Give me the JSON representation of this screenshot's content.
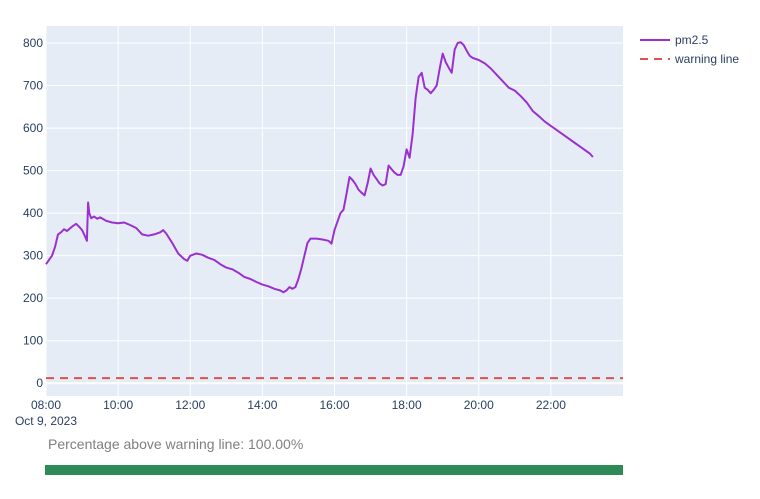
{
  "chart_data": {
    "type": "line",
    "title": "",
    "xlabel": "",
    "ylabel": "",
    "date_label": "Oct 9, 2023",
    "x_range": [
      "08:00",
      "24:00"
    ],
    "x_ticks": [
      "08:00",
      "10:00",
      "12:00",
      "14:00",
      "16:00",
      "18:00",
      "20:00",
      "22:00"
    ],
    "ylim": [
      -30,
      840
    ],
    "y_ticks": [
      0,
      100,
      200,
      300,
      400,
      500,
      600,
      700,
      800
    ],
    "grid": true,
    "legend_position": "top-right",
    "series": [
      {
        "name": "pm2.5",
        "color": "#9b30d0",
        "style": "solid",
        "points": [
          [
            "08:00",
            280
          ],
          [
            "08:05",
            290
          ],
          [
            "08:10",
            300
          ],
          [
            "08:15",
            320
          ],
          [
            "08:20",
            350
          ],
          [
            "08:25",
            355
          ],
          [
            "08:30",
            362
          ],
          [
            "08:35",
            358
          ],
          [
            "08:40",
            364
          ],
          [
            "08:45",
            370
          ],
          [
            "08:50",
            375
          ],
          [
            "08:55",
            368
          ],
          [
            "09:00",
            360
          ],
          [
            "09:05",
            345
          ],
          [
            "09:08",
            335
          ],
          [
            "09:10",
            425
          ],
          [
            "09:12",
            400
          ],
          [
            "09:15",
            388
          ],
          [
            "09:20",
            392
          ],
          [
            "09:25",
            387
          ],
          [
            "09:30",
            390
          ],
          [
            "09:40",
            382
          ],
          [
            "09:50",
            378
          ],
          [
            "10:00",
            376
          ],
          [
            "10:10",
            378
          ],
          [
            "10:20",
            372
          ],
          [
            "10:30",
            365
          ],
          [
            "10:40",
            350
          ],
          [
            "10:50",
            347
          ],
          [
            "11:00",
            350
          ],
          [
            "11:10",
            355
          ],
          [
            "11:15",
            360
          ],
          [
            "11:20",
            352
          ],
          [
            "11:30",
            330
          ],
          [
            "11:40",
            305
          ],
          [
            "11:50",
            292
          ],
          [
            "11:55",
            288
          ],
          [
            "12:00",
            300
          ],
          [
            "12:10",
            305
          ],
          [
            "12:20",
            302
          ],
          [
            "12:30",
            295
          ],
          [
            "12:40",
            290
          ],
          [
            "12:50",
            280
          ],
          [
            "13:00",
            272
          ],
          [
            "13:10",
            268
          ],
          [
            "13:20",
            260
          ],
          [
            "13:30",
            250
          ],
          [
            "13:40",
            245
          ],
          [
            "13:50",
            238
          ],
          [
            "14:00",
            232
          ],
          [
            "14:10",
            228
          ],
          [
            "14:20",
            222
          ],
          [
            "14:30",
            218
          ],
          [
            "14:35",
            214
          ],
          [
            "14:40",
            218
          ],
          [
            "14:45",
            226
          ],
          [
            "14:50",
            222
          ],
          [
            "14:55",
            226
          ],
          [
            "15:00",
            245
          ],
          [
            "15:05",
            270
          ],
          [
            "15:10",
            300
          ],
          [
            "15:15",
            330
          ],
          [
            "15:20",
            340
          ],
          [
            "15:30",
            340
          ],
          [
            "15:40",
            338
          ],
          [
            "15:50",
            335
          ],
          [
            "15:55",
            328
          ],
          [
            "16:00",
            360
          ],
          [
            "16:10",
            400
          ],
          [
            "16:15",
            408
          ],
          [
            "16:20",
            445
          ],
          [
            "16:25",
            485
          ],
          [
            "16:30",
            478
          ],
          [
            "16:35",
            468
          ],
          [
            "16:40",
            455
          ],
          [
            "16:45",
            448
          ],
          [
            "16:50",
            442
          ],
          [
            "16:55",
            470
          ],
          [
            "17:00",
            505
          ],
          [
            "17:05",
            490
          ],
          [
            "17:10",
            480
          ],
          [
            "17:15",
            470
          ],
          [
            "17:20",
            465
          ],
          [
            "17:25",
            468
          ],
          [
            "17:30",
            512
          ],
          [
            "17:35",
            503
          ],
          [
            "17:40",
            495
          ],
          [
            "17:45",
            490
          ],
          [
            "17:50",
            490
          ],
          [
            "17:55",
            510
          ],
          [
            "18:00",
            550
          ],
          [
            "18:05",
            530
          ],
          [
            "18:10",
            585
          ],
          [
            "18:15",
            670
          ],
          [
            "18:20",
            720
          ],
          [
            "18:25",
            730
          ],
          [
            "18:30",
            695
          ],
          [
            "18:35",
            690
          ],
          [
            "18:40",
            682
          ],
          [
            "18:45",
            690
          ],
          [
            "18:50",
            700
          ],
          [
            "18:55",
            740
          ],
          [
            "19:00",
            775
          ],
          [
            "19:05",
            755
          ],
          [
            "19:10",
            742
          ],
          [
            "19:15",
            730
          ],
          [
            "19:20",
            785
          ],
          [
            "19:25",
            800
          ],
          [
            "19:30",
            802
          ],
          [
            "19:35",
            795
          ],
          [
            "19:40",
            782
          ],
          [
            "19:45",
            770
          ],
          [
            "19:50",
            765
          ],
          [
            "20:00",
            760
          ],
          [
            "20:10",
            752
          ],
          [
            "20:20",
            740
          ],
          [
            "20:30",
            725
          ],
          [
            "20:40",
            710
          ],
          [
            "20:50",
            695
          ],
          [
            "21:00",
            688
          ],
          [
            "21:10",
            675
          ],
          [
            "21:20",
            660
          ],
          [
            "21:30",
            640
          ],
          [
            "21:40",
            628
          ],
          [
            "21:50",
            615
          ],
          [
            "22:00",
            605
          ],
          [
            "22:10",
            595
          ],
          [
            "22:20",
            585
          ],
          [
            "22:30",
            575
          ],
          [
            "22:40",
            565
          ],
          [
            "22:50",
            555
          ],
          [
            "23:00",
            545
          ],
          [
            "23:05",
            540
          ],
          [
            "23:10",
            532
          ]
        ]
      },
      {
        "name": "warning line",
        "color": "#d9534f",
        "style": "dashed",
        "points": [
          [
            "08:00",
            12
          ],
          [
            "24:00",
            12
          ]
        ]
      }
    ]
  },
  "summary": {
    "text": "Percentage above warning line: 100.00%",
    "percent_above": 100.0,
    "bar_color": "#2e8b57"
  }
}
